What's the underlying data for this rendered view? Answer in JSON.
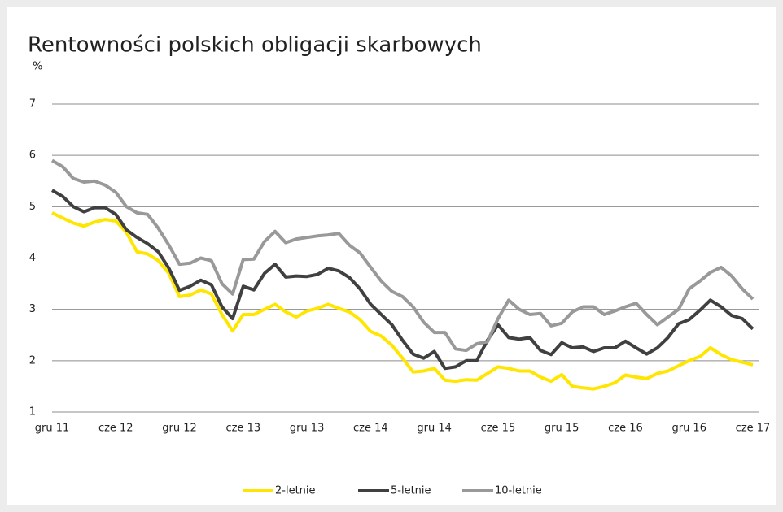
{
  "chart_data": {
    "type": "line",
    "title": "Rentowności polskich obligacji skarbowych",
    "y_axis_label": "%",
    "categories": [
      "gru 11",
      null,
      null,
      null,
      null,
      null,
      "cze 12",
      null,
      null,
      null,
      null,
      null,
      "gru 12",
      null,
      null,
      null,
      null,
      null,
      "cze 13",
      null,
      null,
      null,
      null,
      null,
      "gru 13",
      null,
      null,
      null,
      null,
      null,
      "cze 14",
      null,
      null,
      null,
      null,
      null,
      "gru 14",
      null,
      null,
      null,
      null,
      null,
      "cze 15",
      null,
      null,
      null,
      null,
      null,
      "gru 15",
      null,
      null,
      null,
      null,
      null,
      "cze 16",
      null,
      null,
      null,
      null,
      null,
      "gru 16",
      null,
      null,
      null,
      null,
      null,
      "cze 17"
    ],
    "ylim": [
      1,
      7
    ],
    "yticks": [
      1,
      2,
      3,
      4,
      5,
      6,
      7
    ],
    "grid": true,
    "legend": "bottom",
    "series": [
      {
        "name": "2-letnie",
        "color": "#ffe600",
        "values": [
          4.88,
          4.78,
          4.68,
          4.62,
          4.7,
          4.75,
          4.72,
          4.5,
          4.12,
          4.08,
          3.95,
          3.7,
          3.25,
          3.28,
          3.38,
          3.3,
          2.9,
          2.58,
          2.9,
          2.9,
          3.0,
          3.1,
          2.95,
          2.85,
          2.97,
          3.02,
          3.1,
          3.02,
          2.95,
          2.8,
          2.57,
          2.48,
          2.3,
          2.05,
          1.78,
          1.8,
          1.85,
          1.62,
          1.6,
          1.63,
          1.62,
          1.75,
          1.88,
          1.85,
          1.8,
          1.8,
          1.68,
          1.6,
          1.73,
          1.5,
          1.47,
          1.45,
          1.5,
          1.57,
          1.72,
          1.68,
          1.65,
          1.75,
          1.8,
          1.9,
          2.0,
          2.08,
          2.25,
          2.12,
          2.02,
          1.97,
          1.92
        ]
      },
      {
        "name": "5-letnie",
        "color": "#404040",
        "values": [
          5.32,
          5.2,
          5.0,
          4.9,
          4.98,
          4.98,
          4.85,
          4.55,
          4.4,
          4.28,
          4.12,
          3.8,
          3.37,
          3.45,
          3.57,
          3.48,
          3.05,
          2.82,
          3.45,
          3.38,
          3.7,
          3.88,
          3.63,
          3.65,
          3.64,
          3.68,
          3.8,
          3.75,
          3.62,
          3.4,
          3.1,
          2.9,
          2.7,
          2.4,
          2.13,
          2.05,
          2.18,
          1.85,
          1.88,
          2.0,
          2.0,
          2.4,
          2.7,
          2.45,
          2.42,
          2.45,
          2.2,
          2.12,
          2.35,
          2.25,
          2.27,
          2.18,
          2.25,
          2.25,
          2.38,
          2.25,
          2.13,
          2.25,
          2.45,
          2.72,
          2.8,
          2.98,
          3.18,
          3.05,
          2.88,
          2.82,
          2.62
        ]
      },
      {
        "name": "10-letnie",
        "color": "#999999",
        "values": [
          5.9,
          5.78,
          5.55,
          5.48,
          5.5,
          5.42,
          5.28,
          5.0,
          4.88,
          4.85,
          4.58,
          4.25,
          3.88,
          3.9,
          4.0,
          3.95,
          3.5,
          3.3,
          3.97,
          3.98,
          4.32,
          4.52,
          4.3,
          4.37,
          4.4,
          4.43,
          4.45,
          4.48,
          4.25,
          4.1,
          3.82,
          3.55,
          3.35,
          3.25,
          3.05,
          2.75,
          2.55,
          2.55,
          2.23,
          2.2,
          2.33,
          2.37,
          2.82,
          3.18,
          3.0,
          2.9,
          2.92,
          2.68,
          2.73,
          2.95,
          3.05,
          3.05,
          2.9,
          2.97,
          3.05,
          3.12,
          2.9,
          2.7,
          2.85,
          3.0,
          3.4,
          3.55,
          3.72,
          3.82,
          3.65,
          3.4,
          3.2
        ]
      }
    ]
  }
}
